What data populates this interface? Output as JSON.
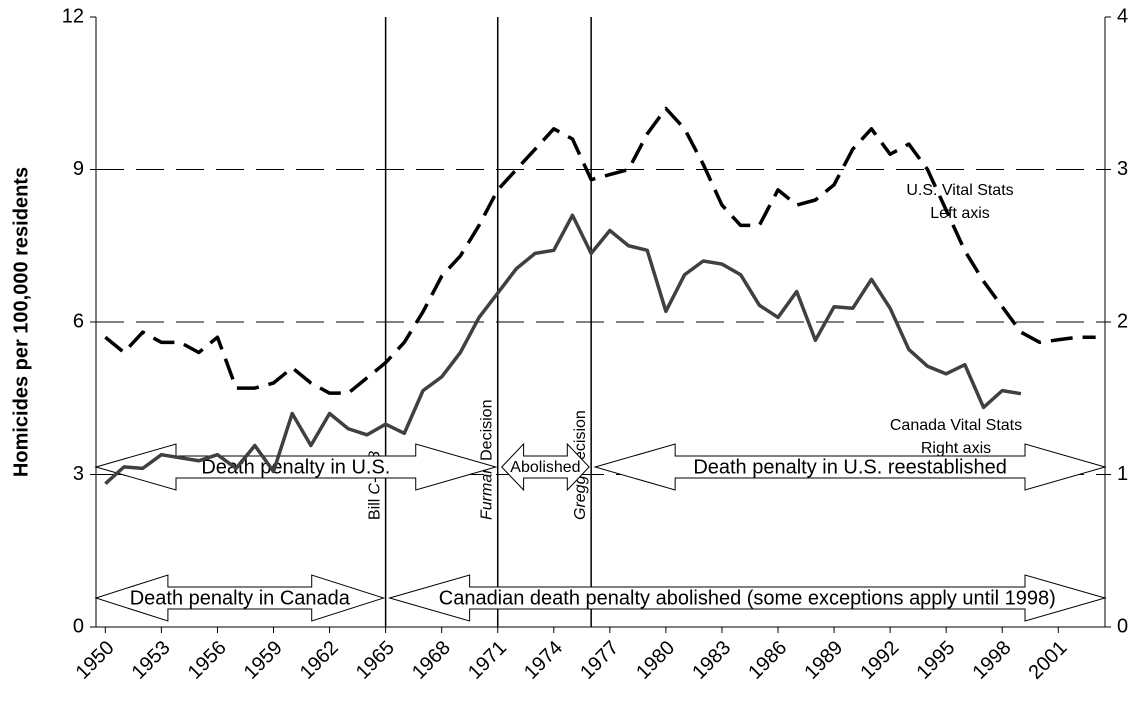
{
  "chart_data": {
    "type": "line",
    "y_label": "Homicides per 100,000 residents",
    "xlim": [
      1949.5,
      2003.5
    ],
    "xticks": [
      1950,
      1953,
      1956,
      1959,
      1962,
      1965,
      1968,
      1971,
      1974,
      1977,
      1980,
      1983,
      1986,
      1989,
      1992,
      1995,
      1998,
      2001
    ],
    "ylim": [
      0,
      12
    ],
    "yticks": [
      0,
      3,
      6,
      9,
      12
    ],
    "y2lim": [
      0,
      4
    ],
    "y2ticks": [
      0,
      1,
      2,
      3,
      4
    ],
    "grid": true,
    "series": [
      {
        "name": "U.S. Vital Stats",
        "note": "Left axis",
        "color": "#000000",
        "dashed": true,
        "axis": "y",
        "x": [
          1950,
          1951,
          1952,
          1953,
          1954,
          1955,
          1956,
          1957,
          1958,
          1959,
          1960,
          1961,
          1962,
          1963,
          1964,
          1965,
          1966,
          1967,
          1968,
          1969,
          1970,
          1971,
          1972,
          1973,
          1974,
          1975,
          1976,
          1977,
          1978,
          1979,
          1980,
          1981,
          1982,
          1983,
          1984,
          1985,
          1986,
          1987,
          1988,
          1989,
          1990,
          1991,
          1992,
          1993,
          1994,
          1995,
          1996,
          1997,
          1998,
          1999,
          2000,
          2001,
          2002,
          2003
        ],
        "values": [
          5.7,
          5.4,
          5.8,
          5.6,
          5.6,
          5.4,
          5.7,
          4.7,
          4.7,
          4.8,
          5.1,
          4.8,
          4.6,
          4.6,
          4.9,
          5.2,
          5.6,
          6.2,
          6.9,
          7.3,
          7.9,
          8.6,
          9.0,
          9.4,
          9.8,
          9.6,
          8.8,
          8.9,
          9.0,
          9.7,
          10.2,
          9.8,
          9.1,
          8.3,
          7.9,
          7.9,
          8.6,
          8.3,
          8.4,
          8.7,
          9.4,
          9.8,
          9.3,
          9.5,
          9.0,
          8.2,
          7.4,
          6.8,
          6.3,
          5.8,
          5.6,
          5.65,
          5.7,
          5.7
        ]
      },
      {
        "name": "Canada Vital Stats",
        "note": "Right axis",
        "color": "#404040",
        "dashed": false,
        "axis": "y2",
        "x": [
          1950,
          1951,
          1952,
          1953,
          1954,
          1955,
          1956,
          1957,
          1958,
          1959,
          1960,
          1961,
          1962,
          1963,
          1964,
          1965,
          1966,
          1967,
          1968,
          1969,
          1970,
          1971,
          1972,
          1973,
          1974,
          1975,
          1976,
          1977,
          1978,
          1979,
          1980,
          1981,
          1982,
          1983,
          1984,
          1985,
          1986,
          1987,
          1988,
          1989,
          1990,
          1991,
          1992,
          1993,
          1994,
          1995,
          1996,
          1997,
          1998,
          1999
        ],
        "values": [
          0.94,
          1.05,
          1.04,
          1.13,
          1.11,
          1.09,
          1.13,
          1.04,
          1.19,
          1.02,
          1.4,
          1.19,
          1.4,
          1.3,
          1.26,
          1.33,
          1.27,
          1.55,
          1.64,
          1.8,
          2.03,
          2.19,
          2.35,
          2.45,
          2.47,
          2.7,
          2.45,
          2.6,
          2.5,
          2.47,
          2.07,
          2.31,
          2.4,
          2.38,
          2.31,
          2.11,
          2.03,
          2.2,
          1.88,
          2.1,
          2.09,
          2.28,
          2.09,
          1.82,
          1.71,
          1.66,
          1.72,
          1.44,
          1.55,
          1.53
        ]
      }
    ],
    "events": [
      {
        "x": 1965,
        "parts": [
          {
            "text": "Bill",
            "italic": false
          },
          {
            "text": "C-168",
            "italic": true
          }
        ]
      },
      {
        "x": 1971,
        "parts": [
          {
            "text": "Furman",
            "italic": true
          },
          {
            "text": "Decision",
            "italic": false
          }
        ]
      },
      {
        "x": 1976,
        "parts": [
          {
            "text": "Gregg",
            "italic": true
          },
          {
            "text": "Decision",
            "italic": false
          }
        ]
      }
    ],
    "arrows": [
      {
        "text": "Death penalty in U.S.",
        "row": 0,
        "from": null,
        "to": 1
      },
      {
        "text": "Abolished",
        "row": 0,
        "from": 1,
        "to": 2
      },
      {
        "text": "Death penalty in U.S. reestablished",
        "row": 0,
        "from": 2,
        "to": null
      },
      {
        "text": "Death penalty in Canada",
        "row": 1,
        "from": null,
        "to": 0
      },
      {
        "text": "Canadian death penalty abolished (some exceptions apply until 1998)",
        "row": 1,
        "from": 0,
        "to": null
      }
    ]
  }
}
